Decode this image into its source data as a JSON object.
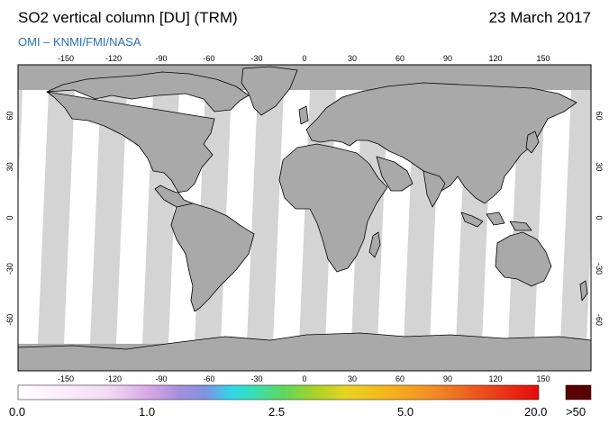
{
  "header": {
    "title": "SO2 vertical column [DU] (TRM)",
    "date": "23 March 2017",
    "source": "OMI  –  KNMI/FMI/NASA"
  },
  "map": {
    "projection": "equirectangular",
    "lon_range": [
      -180,
      180
    ],
    "lat_range": [
      -90,
      90
    ],
    "lon_ticks": [
      "-150",
      "-120",
      "-90",
      "-60",
      "-30",
      "0",
      "30",
      "60",
      "90",
      "120",
      "150"
    ],
    "lat_ticks": [
      "60",
      "30",
      "0",
      "-30",
      "-60"
    ],
    "colors": {
      "background_gray": "#a9a9a9",
      "swath_light": "#d4d4d4",
      "swath_white": "#ffffff",
      "coastline": "#000000"
    }
  },
  "colorbar": {
    "labels": [
      "0.0",
      "1.0",
      "2.5",
      "5.0",
      "20.0"
    ],
    "overflow_label": ">50",
    "overflow_color": "#5a0000"
  }
}
